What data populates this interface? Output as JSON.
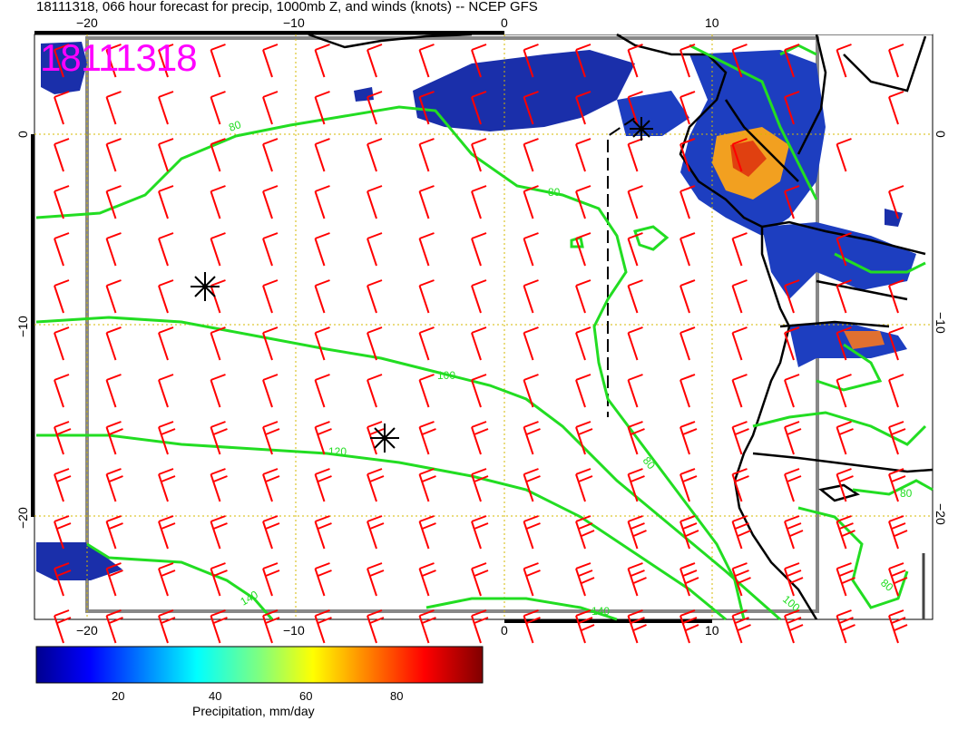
{
  "header": {
    "title": "18111318, 066 hour forecast for precip, 1000mb Z, and winds (knots) -- NCEP GFS",
    "stamp": "18111318"
  },
  "axes": {
    "lon_ticks": [
      "−20",
      "−10",
      "0",
      "10"
    ],
    "lat_ticks": [
      "0",
      "−10",
      "−20"
    ]
  },
  "contour_labels": [
    "80",
    "80",
    "100",
    "120",
    "140",
    "80",
    "100",
    "80",
    "80",
    "140"
  ],
  "colorbar": {
    "label": "Precipitation, mm/day",
    "ticks": [
      "20",
      "40",
      "60",
      "80"
    ]
  },
  "colors": {
    "wind_barbs": "#ff0000",
    "contours": "#22dd22",
    "stamp": "#ff00ff",
    "frame": "#888888"
  }
}
